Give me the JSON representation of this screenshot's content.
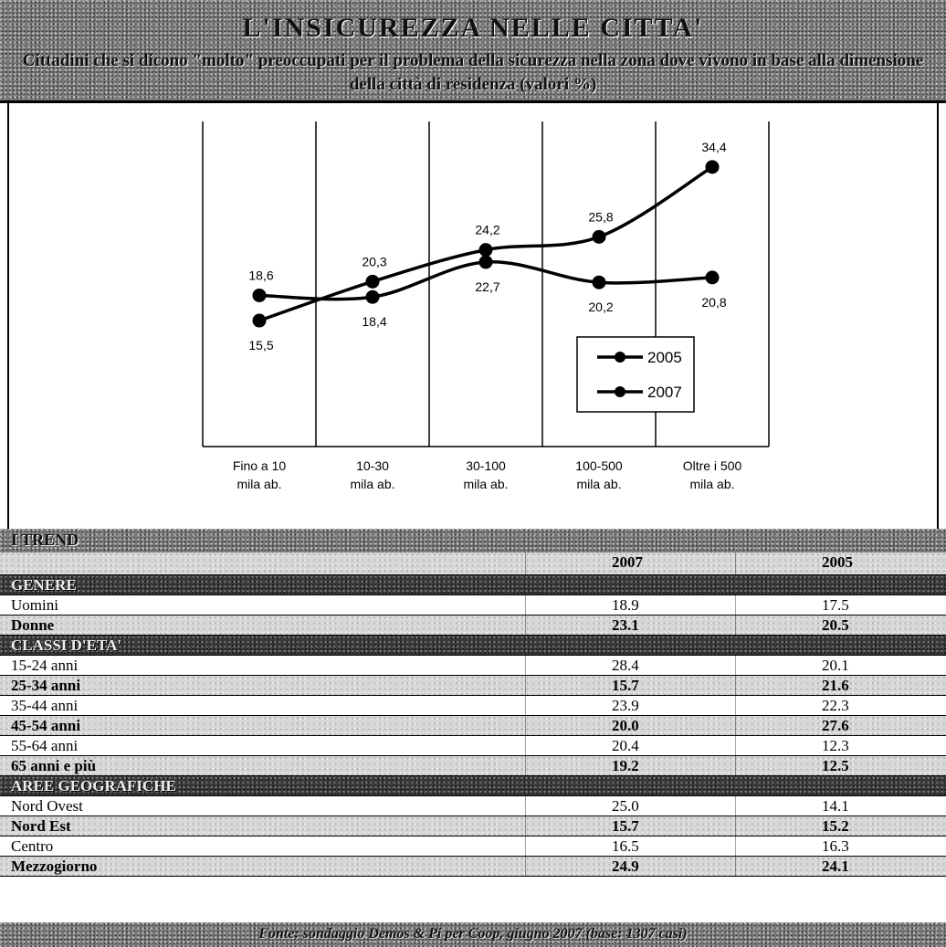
{
  "header": {
    "title": "L'INSICUREZZA NELLE CITTA'",
    "subtitle": "Cittadini che si dicono \"molto\" preoccupati per il problema della sicurezza nella zona dove vivono in base alla dimensione della città di residenza (valori %)"
  },
  "chart_data": {
    "type": "line",
    "categories": [
      "Fino a 10 mila ab.",
      "10-30 mila ab.",
      "30-100 mila ab.",
      "100-500 mila ab.",
      "Oltre i 500 mila ab."
    ],
    "category_lines": [
      [
        "Fino a 10",
        "mila ab."
      ],
      [
        "10-30",
        "mila ab."
      ],
      [
        "30-100",
        "mila ab."
      ],
      [
        "100-500",
        "mila ab."
      ],
      [
        "Oltre i 500",
        "mila ab."
      ]
    ],
    "series": [
      {
        "name": "2005",
        "values": [
          15.5,
          20.3,
          24.2,
          25.8,
          34.4
        ],
        "labels": [
          "15,5",
          "20,3",
          "24,2",
          "25,8",
          "34,4"
        ]
      },
      {
        "name": "2007",
        "values": [
          18.6,
          18.4,
          22.7,
          20.2,
          20.8
        ],
        "labels": [
          "18,6",
          "18,4",
          "22,7",
          "20,2",
          "20,8"
        ]
      }
    ],
    "ylim": [
      0,
      40
    ],
    "grid": "vertical",
    "legend": "right",
    "colors": {
      "line": "#000000",
      "marker": "#000000"
    }
  },
  "trend": {
    "title": "I TREND",
    "years": [
      "2007",
      "2005"
    ],
    "sections": [
      {
        "title": "GENERE",
        "rows": [
          {
            "label": "Uomini",
            "v2007": "18.9",
            "v2005": "17.5"
          },
          {
            "label": "Donne",
            "v2007": "23.1",
            "v2005": "20.5"
          }
        ]
      },
      {
        "title": "CLASSI D'ETA'",
        "rows": [
          {
            "label": "15-24 anni",
            "v2007": "28.4",
            "v2005": "20.1"
          },
          {
            "label": "25-34 anni",
            "v2007": "15.7",
            "v2005": "21.6"
          },
          {
            "label": "35-44 anni",
            "v2007": "23.9",
            "v2005": "22.3"
          },
          {
            "label": "45-54 anni",
            "v2007": "20.0",
            "v2005": "27.6"
          },
          {
            "label": "55-64 anni",
            "v2007": "20.4",
            "v2005": "12.3"
          },
          {
            "label": "65 anni e più",
            "v2007": "19.2",
            "v2005": "12.5"
          }
        ]
      },
      {
        "title": "AREE GEOGRAFICHE",
        "rows": [
          {
            "label": "Nord Ovest",
            "v2007": "25.0",
            "v2005": "14.1"
          },
          {
            "label": "Nord Est",
            "v2007": "15.7",
            "v2005": "15.2"
          },
          {
            "label": "Centro",
            "v2007": "16.5",
            "v2005": "16.3"
          },
          {
            "label": "Mezzogiorno",
            "v2007": "24.9",
            "v2005": "24.1"
          }
        ]
      }
    ]
  },
  "footer": {
    "source": "Fonte: sondaggio Demos & Pi per Coop, giugno 2007 (base: 1307 casi)"
  }
}
